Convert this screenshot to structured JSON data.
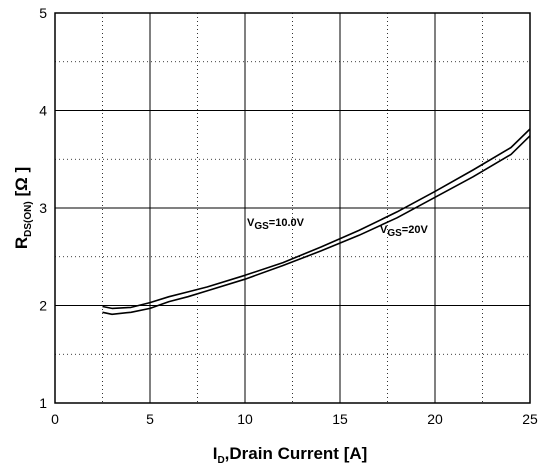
{
  "chart_data": {
    "type": "line",
    "xlabel_main": "I",
    "xlabel_sub": "D",
    "xlabel_rest": ",Drain Current [A]",
    "ylabel_main": "R",
    "ylabel_sub": "DS(ON)",
    "ylabel_rest": " [Ω ]",
    "xlim": [
      0,
      25
    ],
    "ylim": [
      1,
      5
    ],
    "xticks": [
      0,
      5,
      10,
      15,
      20,
      25
    ],
    "yticks": [
      1,
      2,
      3,
      4,
      5
    ],
    "grid": "solid major, dotted minor",
    "series": [
      {
        "label_main": "V",
        "label_sub": "GS",
        "label_rest": "=10.0V",
        "x": [
          2.5,
          3.0,
          4.0,
          5.0,
          6.0,
          7.0,
          8.0,
          10.0,
          12.0,
          14.0,
          16.0,
          18.0,
          20.0,
          22.0,
          24.0,
          25.0
        ],
        "y": [
          1.99,
          1.97,
          1.98,
          2.03,
          2.09,
          2.14,
          2.19,
          2.31,
          2.44,
          2.6,
          2.77,
          2.96,
          3.17,
          3.39,
          3.62,
          3.81
        ]
      },
      {
        "label_main": "V",
        "label_sub": "GS",
        "label_rest": "=20V",
        "x": [
          2.5,
          3.0,
          4.0,
          5.0,
          6.0,
          7.0,
          8.0,
          10.0,
          12.0,
          14.0,
          16.0,
          18.0,
          20.0,
          22.0,
          24.0,
          25.0
        ],
        "y": [
          1.93,
          1.91,
          1.93,
          1.97,
          2.04,
          2.09,
          2.15,
          2.27,
          2.41,
          2.56,
          2.72,
          2.9,
          3.11,
          3.32,
          3.55,
          3.74
        ]
      }
    ]
  }
}
